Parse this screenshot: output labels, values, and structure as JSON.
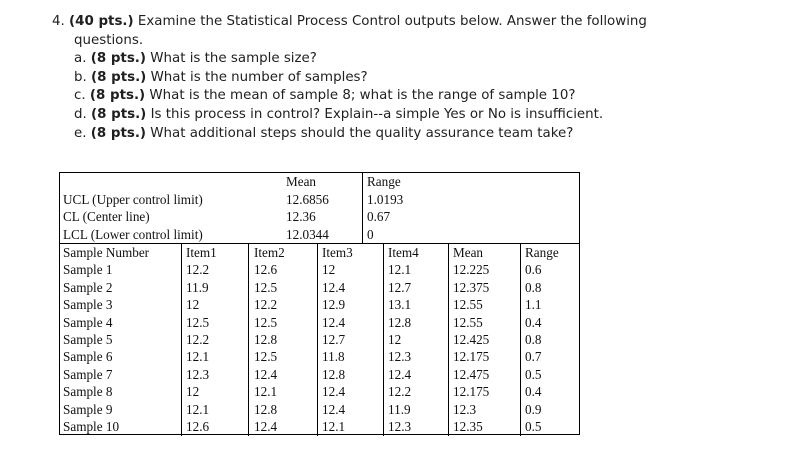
{
  "question": {
    "number": "4.",
    "points": "(40 pts.)",
    "prompt_line1": "Examine the Statistical Process Control outputs below. Answer the following",
    "prompt_line2": "questions.",
    "parts": [
      {
        "letter": "a.",
        "points": "(8 pts.)",
        "text": "What is the sample size?"
      },
      {
        "letter": "b.",
        "points": "(8 pts.)",
        "text": "What is the number of samples?"
      },
      {
        "letter": "c.",
        "points": "(8 pts.)",
        "text": "What is the mean of sample 8; what is the range of sample 10?"
      },
      {
        "letter": "d.",
        "points": "(8 pts.)",
        "text": "Is this process in control? Explain--a simple Yes or No is insufficient."
      },
      {
        "letter": "e.",
        "points": "(8 pts.)",
        "text": "What additional steps should the quality assurance team take?"
      }
    ]
  },
  "spc": {
    "col_mean": "Mean",
    "col_range": "Range",
    "limits": [
      {
        "label": "UCL (Upper control limit)",
        "mean": "12.6856",
        "range": "1.0193"
      },
      {
        "label": "CL (Center line)",
        "mean": "12.36",
        "range": "0.67"
      },
      {
        "label": "LCL (Lower control limit)",
        "mean": "12.0344",
        "range": "0"
      }
    ],
    "headers": [
      "Sample Number",
      "Item1",
      "Item2",
      "Item3",
      "Item4",
      "Mean",
      "Range"
    ],
    "rows": [
      [
        "Sample 1",
        "12.2",
        "12.6",
        "12",
        "12.1",
        "12.225",
        "0.6"
      ],
      [
        "Sample 2",
        "11.9",
        "12.5",
        "12.4",
        "12.7",
        "12.375",
        "0.8"
      ],
      [
        "Sample 3",
        "12",
        "12.2",
        "12.9",
        "13.1",
        "12.55",
        "1.1"
      ],
      [
        "Sample 4",
        "12.5",
        "12.5",
        "12.4",
        "12.8",
        "12.55",
        "0.4"
      ],
      [
        "Sample 5",
        "12.2",
        "12.8",
        "12.7",
        "12",
        "12.425",
        "0.8"
      ],
      [
        "Sample 6",
        "12.1",
        "12.5",
        "11.8",
        "12.3",
        "12.175",
        "0.7"
      ],
      [
        "Sample 7",
        "12.3",
        "12.4",
        "12.8",
        "12.4",
        "12.475",
        "0.5"
      ],
      [
        "Sample 8",
        "12",
        "12.1",
        "12.4",
        "12.2",
        "12.175",
        "0.4"
      ],
      [
        "Sample 9",
        "12.1",
        "12.8",
        "12.4",
        "11.9",
        "12.3",
        "0.9"
      ],
      [
        "Sample 10",
        "12.6",
        "12.4",
        "12.1",
        "12.3",
        "12.35",
        "0.5"
      ]
    ]
  }
}
